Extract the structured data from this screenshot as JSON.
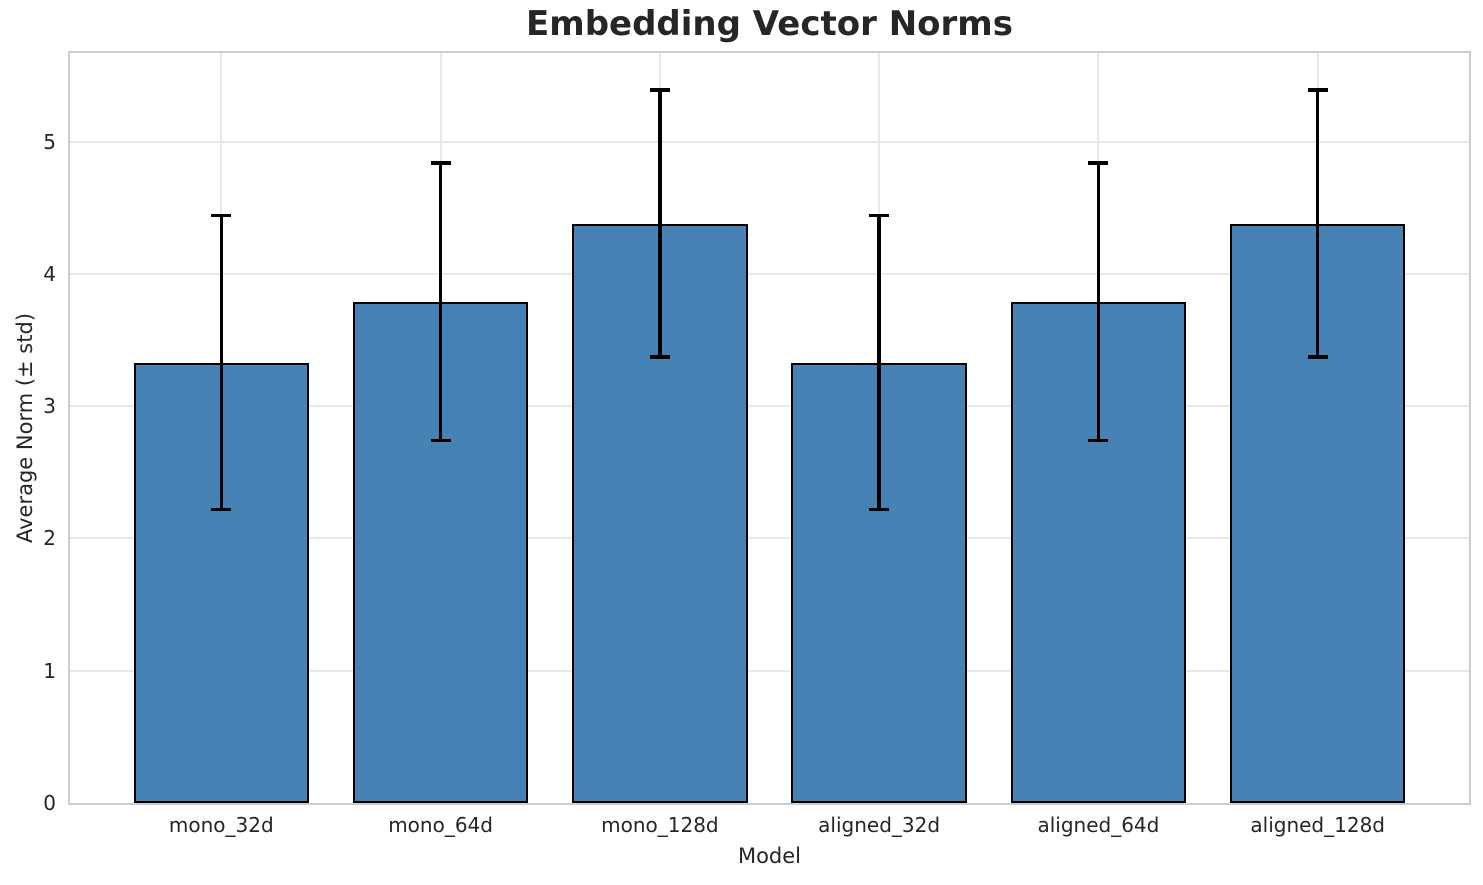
{
  "chart_data": {
    "type": "bar",
    "title": "Embedding Vector Norms",
    "xlabel": "Model",
    "ylabel": "Average Norm (± std)",
    "categories": [
      "mono_32d",
      "mono_64d",
      "mono_128d",
      "aligned_32d",
      "aligned_64d",
      "aligned_128d"
    ],
    "values": [
      3.33,
      3.79,
      4.38,
      3.33,
      3.79,
      4.38
    ],
    "errors_std": [
      1.11,
      1.05,
      1.01,
      1.11,
      1.05,
      1.01
    ],
    "yticks": [
      0,
      1,
      2,
      3,
      4,
      5
    ],
    "ylim": [
      0,
      5.67
    ],
    "xlim": [
      -0.69,
      5.69
    ],
    "bar_width": 0.8,
    "grid": true,
    "legend": "none",
    "colors": {
      "bar_fill": "#4682b4",
      "bar_edge": "#000000",
      "error_bar": "#000000",
      "grid_line": "#e9e9e9",
      "spine": "#cdcdcd",
      "text": "#262626"
    }
  }
}
